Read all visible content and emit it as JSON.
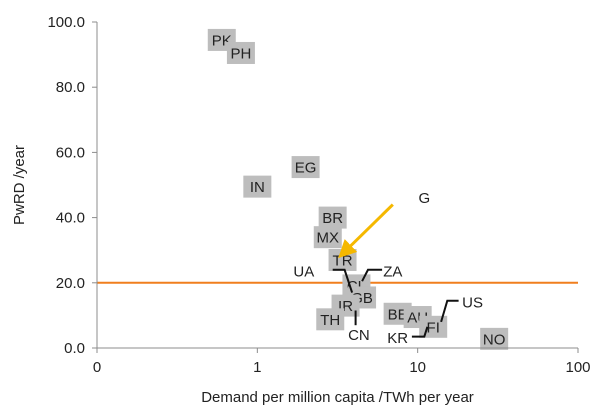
{
  "chart_data": {
    "type": "scatter",
    "xlabel": "Demand per million capita /TWh per year",
    "ylabel": "PwRD /year",
    "xscale": "log",
    "xlim": [
      0.1,
      100
    ],
    "ylim": [
      0,
      100
    ],
    "x_ticks": [
      {
        "value": 0.1,
        "label": "0"
      },
      {
        "value": 1,
        "label": "1"
      },
      {
        "value": 10,
        "label": "10"
      },
      {
        "value": 100,
        "label": "100"
      }
    ],
    "y_ticks": [
      {
        "value": 0,
        "label": "0.0"
      },
      {
        "value": 20,
        "label": "20.0"
      },
      {
        "value": 40,
        "label": "40.0"
      },
      {
        "value": 60,
        "label": "60.0"
      },
      {
        "value": 80,
        "label": "80.0"
      },
      {
        "value": 100,
        "label": "100.0"
      }
    ],
    "grid": false,
    "reference_line": {
      "y": 20,
      "color": "#f07f1e"
    },
    "marker_color": "#bdbdbd",
    "points": [
      {
        "label": "PK",
        "x": 0.6,
        "y": 94.5
      },
      {
        "label": "PH",
        "x": 0.79,
        "y": 90.5
      },
      {
        "label": "EG",
        "x": 2.0,
        "y": 55.5
      },
      {
        "label": "IN",
        "x": 1.0,
        "y": 49.5
      },
      {
        "label": "BR",
        "x": 2.95,
        "y": 40.0
      },
      {
        "label": "MX",
        "x": 2.75,
        "y": 34.0
      },
      {
        "label": "TR",
        "x": 3.4,
        "y": 27.0
      },
      {
        "label": "CL",
        "x": 4.15,
        "y": 19.2
      },
      {
        "label": "GB",
        "x": 4.5,
        "y": 15.5
      },
      {
        "label": "IR",
        "x": 3.55,
        "y": 13.0
      },
      {
        "label": "TH",
        "x": 2.85,
        "y": 8.8
      },
      {
        "label": "BE",
        "x": 7.5,
        "y": 10.5
      },
      {
        "label": "AU",
        "x": 10.0,
        "y": 9.5
      },
      {
        "label": "FI",
        "x": 12.5,
        "y": 6.5
      },
      {
        "label": "NO",
        "x": 30.0,
        "y": 2.8
      }
    ],
    "callouts": [
      {
        "label": "UA",
        "tx": 1.95,
        "ty": 23.5,
        "path": [
          [
            2.95,
            24.0
          ],
          [
            3.5,
            24.0
          ],
          [
            3.9,
            17.0
          ]
        ]
      },
      {
        "label": "ZA",
        "tx": 7.0,
        "ty": 23.5,
        "path": [
          [
            6.0,
            24.0
          ],
          [
            4.9,
            24.0
          ],
          [
            4.5,
            20.5
          ]
        ]
      },
      {
        "label": "CN",
        "tx": 4.3,
        "ty": 4.0,
        "path": [
          [
            4.1,
            7.0
          ],
          [
            4.1,
            11.5
          ]
        ]
      },
      {
        "label": "KR",
        "tx": 7.5,
        "ty": 3.0,
        "path": [
          [
            9.2,
            3.5
          ],
          [
            11.0,
            3.5
          ],
          [
            11.5,
            6.5
          ]
        ]
      },
      {
        "label": "US",
        "tx": 22.0,
        "ty": 14.0,
        "path": [
          [
            18.0,
            14.5
          ],
          [
            15.3,
            14.5
          ],
          [
            14.0,
            8.0
          ]
        ]
      }
    ],
    "annotation": {
      "label": "G",
      "color": "#f5b800",
      "arrow_from": {
        "x": 7.0,
        "y": 44.0
      },
      "arrow_to": {
        "x": 3.5,
        "y": 29.5
      },
      "label_pos": {
        "x": 11.0,
        "y": 46.0
      }
    }
  }
}
